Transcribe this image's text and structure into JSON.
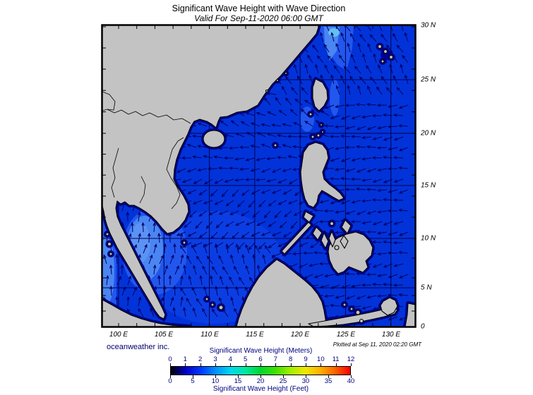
{
  "header": {
    "title": "Significant Wave Height with Wave Direction",
    "subtitle": "Valid For Sep-11-2020 06:00 GMT"
  },
  "map": {
    "lat_labels": [
      "30 N",
      "25 N",
      "20 N",
      "15 N",
      "10 N",
      "5 N",
      "0"
    ],
    "lon_labels": [
      "100 E",
      "105 E",
      "110 E",
      "115 E",
      "120 E",
      "125 E",
      "130 E"
    ],
    "colors": {
      "ocean": "#0233d8",
      "land": "#c3c3c3",
      "rim": "#000085",
      "coastline": "#000000",
      "arrow": "#000066",
      "grid": "#000050",
      "patch_light": "#2257ee",
      "patch_lighter": "#4a86f2",
      "patch_cyan": "#63c0f2",
      "patch_subtle": "#0b3ee2",
      "patch_core": "#5b93f4",
      "patch_dark": "#0000a8"
    },
    "wave_direction_regions": [
      {
        "region": "Gulf of Thailand",
        "toward": "N"
      },
      {
        "region": "Andaman Sea",
        "toward": "N"
      },
      {
        "region": "East China Sea / Taiwan Strait",
        "toward": "NNW"
      },
      {
        "region": "Northern South China Sea",
        "toward": "NW to WSW"
      },
      {
        "region": "Central South China Sea",
        "toward": "SW"
      },
      {
        "region": "Southern South China Sea",
        "toward": "NNW"
      },
      {
        "region": "Philippine Sea (Pacific)",
        "toward": "W"
      },
      {
        "region": "Sulu Sea",
        "toward": "W"
      },
      {
        "region": "Celebes Sea",
        "toward": "SW"
      }
    ]
  },
  "colorbar": {
    "title_meters": "Significant Wave Height (Meters)",
    "title_feet": "Significant Wave Height (Feet)",
    "meters_ticks": [
      "0",
      "1",
      "2",
      "3",
      "4",
      "5",
      "6",
      "7",
      "8",
      "9",
      "10",
      "11",
      "12"
    ],
    "feet_ticks": [
      "0",
      "5",
      "10",
      "15",
      "20",
      "25",
      "30",
      "35",
      "40"
    ],
    "gradient": [
      "#000000",
      "#0000c8",
      "#0038ff",
      "#0090ff",
      "#00d8f0",
      "#00e8a0",
      "#00d830",
      "#40e000",
      "#a0f000",
      "#f0e800",
      "#ffb000",
      "#ff6000",
      "#ff0000"
    ],
    "label_color": "#000080"
  },
  "footer": {
    "credit": "oceanweather inc.",
    "plotted": "Plotted at Sep 11, 2020 02:20 GMT"
  }
}
